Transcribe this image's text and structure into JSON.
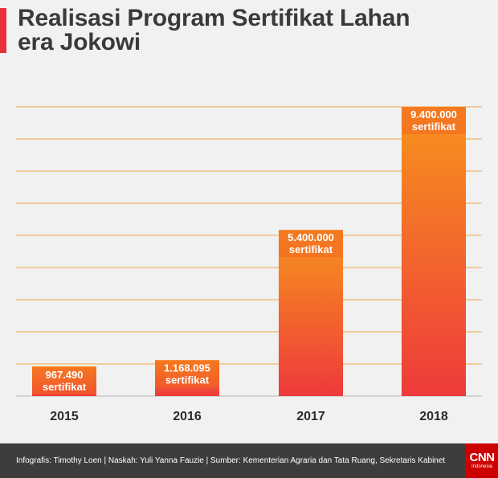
{
  "title_lines": [
    "Realisasi Program Sertifikat Lahan",
    "era Jokowi"
  ],
  "footer_text": "Infografis: Timothy Loen | Naskah: Yuli Yanna Fauzie | Sumber: Kementerian Agraria dan Tata Ruang, Sekretaris Kabinet",
  "logo": {
    "main": "CNN",
    "sub": "Indonesia"
  },
  "colors": {
    "accent": "#e8313a",
    "gridline": "#f0a844",
    "bar_top": "#f7941d",
    "bar_bottom": "#ee3a3b",
    "label_bg": "#f26522",
    "footer_bg": "#3d3d3d",
    "axis": "#c9c9c9"
  },
  "chart_data": {
    "type": "bar",
    "title": "Realisasi Program Sertifikat Lahan era Jokowi",
    "categories": [
      "2015",
      "2016",
      "2017",
      "2018"
    ],
    "values": [
      967490,
      1168095,
      5400000,
      9400000
    ],
    "data_labels": [
      [
        "967.490",
        "sertifikat"
      ],
      [
        "1.168.095",
        "sertifikat"
      ],
      [
        "5.400.000",
        "sertifikat"
      ],
      [
        "9.400.000",
        "sertifikat"
      ]
    ],
    "ylim": [
      0,
      9400000
    ],
    "grid": true,
    "xlabel": "",
    "ylabel": ""
  }
}
